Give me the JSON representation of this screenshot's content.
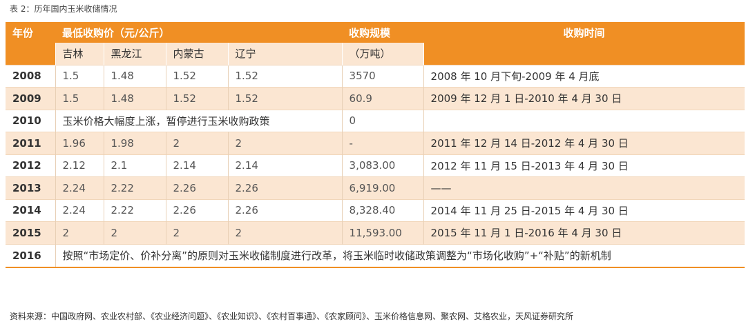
{
  "caption": "表 2：历年国内玉米收储情况",
  "header": {
    "year": "年份",
    "min_price": "最低收购价（元/公斤）",
    "scale": "收购规模",
    "time": "收购时间",
    "scale_unit": "（万吨）",
    "provinces": [
      "吉林",
      "黑龙江",
      "内蒙古",
      "辽宁"
    ]
  },
  "rows": [
    {
      "year": "2008",
      "jilin": "1.5",
      "heilongjiang": "1.48",
      "neimenggu": "1.52",
      "liaoning": "1.52",
      "scale": "3570",
      "time": "2008 年 10 月下旬-2009 年 4 月底"
    },
    {
      "year": "2009",
      "jilin": "1.5",
      "heilongjiang": "1.48",
      "neimenggu": "1.52",
      "liaoning": "1.52",
      "scale": "60.9",
      "time": "2009 年 12 月 1 日-2010 年 4 月 30 日"
    },
    {
      "year": "2010",
      "note": "玉米价格大幅度上涨，暂停进行玉米收购政策",
      "scale": "0",
      "time": ""
    },
    {
      "year": "2011",
      "jilin": "1.96",
      "heilongjiang": "1.98",
      "neimenggu": "2",
      "liaoning": "2",
      "scale": "-",
      "time": "2011 年 12 月 14 日-2012 年 4 月 30 日"
    },
    {
      "year": "2012",
      "jilin": "2.12",
      "heilongjiang": "2.1",
      "neimenggu": "2.14",
      "liaoning": "2.14",
      "scale": "3,083.00",
      "time": "2012 年 11 月 15 日-2013 年 4 月 30 日"
    },
    {
      "year": "2013",
      "jilin": "2.24",
      "heilongjiang": "2.22",
      "neimenggu": "2.26",
      "liaoning": "2.26",
      "scale": "6,919.00",
      "time": "——"
    },
    {
      "year": "2014",
      "jilin": "2.24",
      "heilongjiang": "2.22",
      "neimenggu": "2.26",
      "liaoning": "2.26",
      "scale": "8,328.40",
      "time": "2014 年 11 月 25 日-2015 年 4 月 30 日"
    },
    {
      "year": "2015",
      "jilin": "2",
      "heilongjiang": "2",
      "neimenggu": "2",
      "liaoning": "2",
      "scale": "11,593.00",
      "time": "2015 年 11 月 1 日-2016 年 4 月 30 日"
    },
    {
      "year": "2016",
      "note": "按照“市场定价、价补分离”的原则对玉米收储制度进行改革，将玉米临时收储政策调整为“市场化收购”+“补贴”的新机制"
    }
  ],
  "source": "资料来源：中国政府网、农业农村部、《农业经济问题》、《农业知识》、《农村百事通》、《农家顾问》、玉米价格信息网、聚农网、艾格农业，天风证券研究所",
  "colors": {
    "header_orange": "#f08f24",
    "row_shade": "#fbe6d2"
  }
}
